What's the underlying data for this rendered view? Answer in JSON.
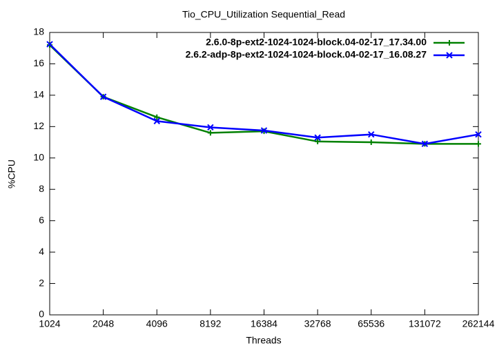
{
  "chart_data": {
    "type": "line",
    "title": "Tio_CPU_Utilization Sequential_Read",
    "x_label": "Threads",
    "y_label": "%CPU",
    "x": [
      1024,
      2048,
      4096,
      8192,
      16384,
      32768,
      65536,
      131072,
      262144
    ],
    "xscale": "log",
    "xlim": [
      1024,
      262144
    ],
    "xticks": [
      1024,
      2048,
      4096,
      8192,
      16384,
      32768,
      65536,
      131072,
      262144
    ],
    "ylim": [
      0,
      18
    ],
    "yticks": [
      0,
      2,
      4,
      6,
      8,
      10,
      12,
      14,
      16,
      18
    ],
    "legend": "top-right",
    "series": [
      {
        "name": "2.6.0-8p-ext2-1024-1024-block.04-02-17_17.34.00",
        "color": "#008000",
        "marker": "plus",
        "values": [
          17.2,
          13.9,
          12.6,
          11.6,
          11.7,
          11.05,
          11.0,
          10.9,
          10.9
        ]
      },
      {
        "name": "2.6.2-adp-8p-ext2-1024-1024-block.04-02-17_16.08.27",
        "color": "#0000ff",
        "marker": "cross",
        "values": [
          17.25,
          13.9,
          12.35,
          11.95,
          11.75,
          11.3,
          11.5,
          10.9,
          11.5
        ]
      }
    ]
  }
}
